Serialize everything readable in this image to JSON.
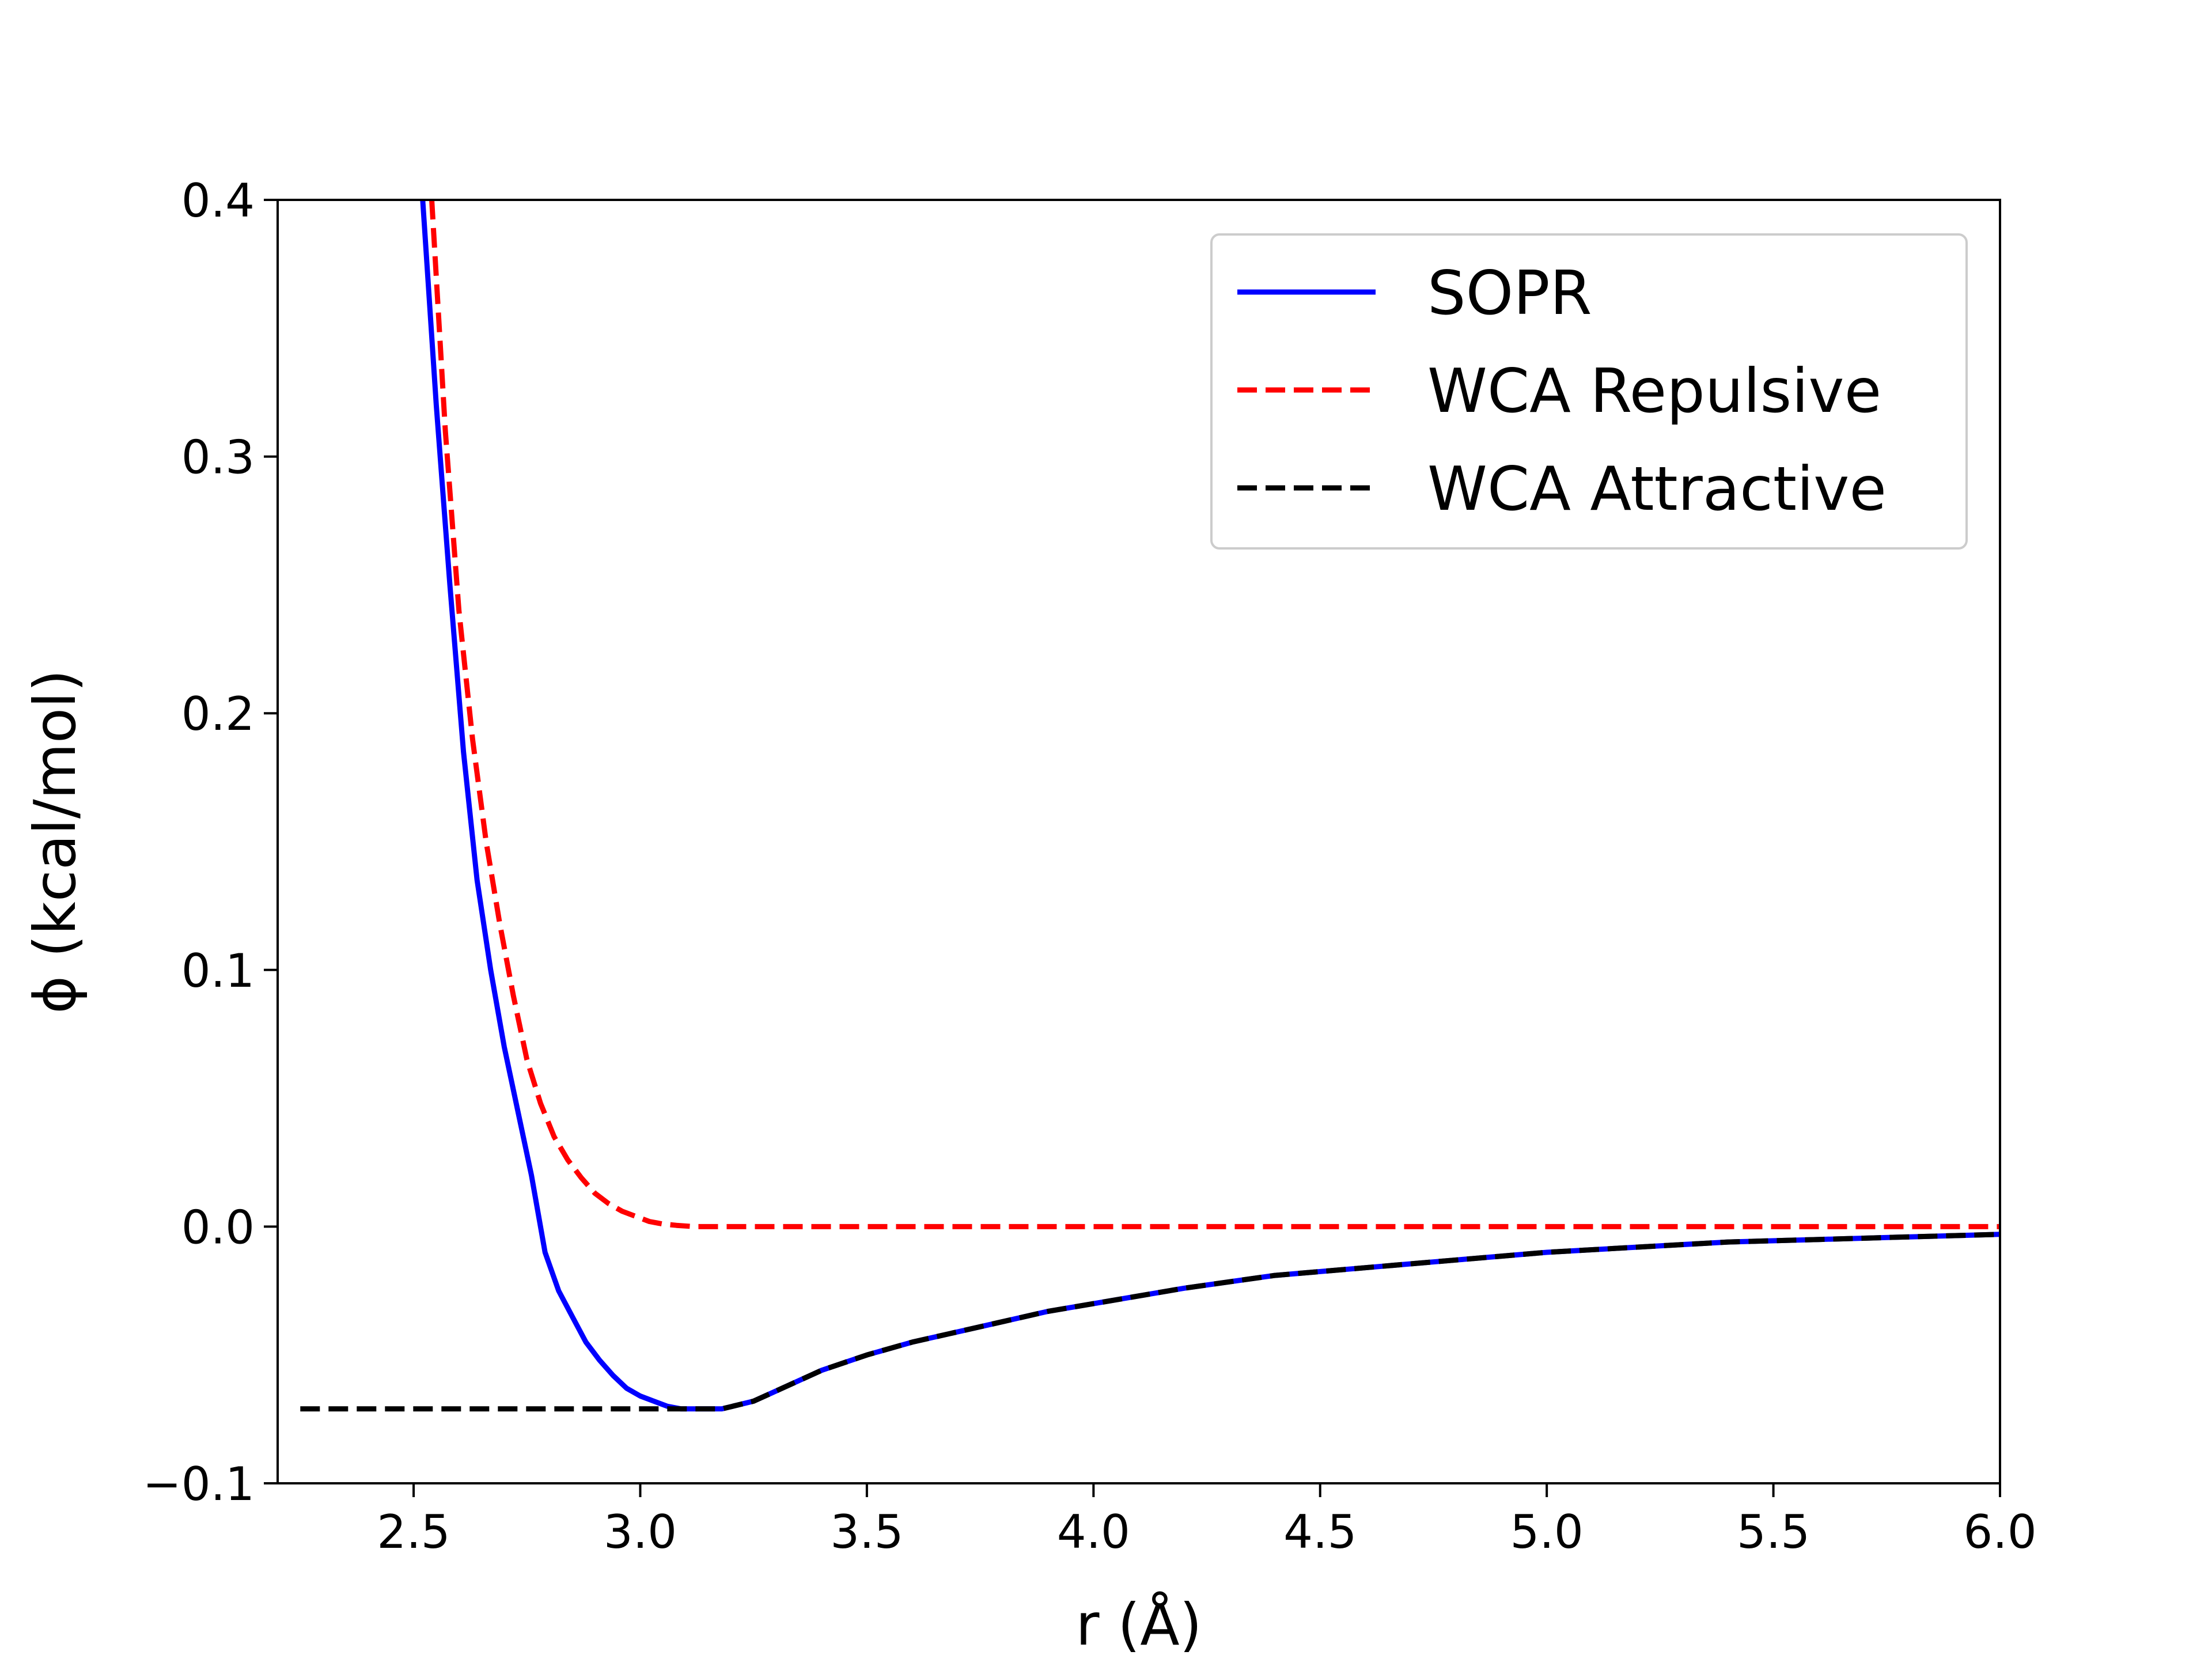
{
  "chart_data": {
    "type": "line",
    "title": "",
    "xlabel": "r (Å)",
    "ylabel": "ϕ (kcal/mol)",
    "xlim": [
      2.2,
      6.0
    ],
    "ylim": [
      -0.1,
      0.4
    ],
    "xticks": [
      2.5,
      3.0,
      3.5,
      4.0,
      4.5,
      5.0,
      5.5,
      6.0
    ],
    "xtick_labels": [
      "2.5",
      "3.0",
      "3.5",
      "4.0",
      "4.5",
      "5.0",
      "5.5",
      "6.0"
    ],
    "yticks": [
      -0.1,
      0.0,
      0.1,
      0.2,
      0.3,
      0.4
    ],
    "ytick_labels": [
      "−0.1",
      "0.0",
      "0.1",
      "0.2",
      "0.3",
      "0.4"
    ],
    "grid": false,
    "legend_position": "top-right",
    "series": [
      {
        "name": "SOPR",
        "color": "#0000ff",
        "style": "solid",
        "x": [
          2.52,
          2.55,
          2.58,
          2.61,
          2.64,
          2.67,
          2.7,
          2.73,
          2.76,
          2.79,
          2.82,
          2.85,
          2.88,
          2.91,
          2.94,
          2.97,
          3.0,
          3.03,
          3.06,
          3.09,
          3.12,
          3.15,
          3.18,
          3.25,
          3.3,
          3.4,
          3.5,
          3.6,
          3.7,
          3.8,
          3.9,
          4.0,
          4.2,
          4.4,
          4.6,
          4.8,
          5.0,
          5.2,
          5.4,
          5.6,
          5.8,
          6.0
        ],
        "y": [
          0.4,
          0.32,
          0.25,
          0.185,
          0.135,
          0.1,
          0.07,
          0.045,
          0.02,
          -0.01,
          -0.025,
          -0.035,
          -0.045,
          -0.052,
          -0.058,
          -0.063,
          -0.066,
          -0.068,
          -0.07,
          -0.071,
          -0.071,
          -0.071,
          -0.071,
          -0.068,
          -0.064,
          -0.056,
          -0.05,
          -0.045,
          -0.041,
          -0.037,
          -0.033,
          -0.03,
          -0.024,
          -0.019,
          -0.016,
          -0.013,
          -0.01,
          -0.008,
          -0.006,
          -0.005,
          -0.004,
          -0.003
        ]
      },
      {
        "name": "WCA Repulsive",
        "color": "#ff0000",
        "style": "dashed",
        "x": [
          2.54,
          2.57,
          2.6,
          2.63,
          2.66,
          2.69,
          2.72,
          2.75,
          2.78,
          2.81,
          2.84,
          2.87,
          2.9,
          2.93,
          2.96,
          2.99,
          3.02,
          3.05,
          3.08,
          3.12,
          3.15,
          3.18,
          3.25,
          3.5,
          4.0,
          4.5,
          5.0,
          5.5,
          6.0
        ],
        "y": [
          0.4,
          0.31,
          0.24,
          0.19,
          0.15,
          0.118,
          0.09,
          0.065,
          0.048,
          0.035,
          0.026,
          0.019,
          0.013,
          0.009,
          0.006,
          0.004,
          0.002,
          0.001,
          0.0005,
          0.0,
          0.0,
          0.0,
          0.0,
          0.0,
          0.0,
          0.0,
          0.0,
          0.0,
          0.0
        ]
      },
      {
        "name": "WCA Attractive",
        "color": "#000000",
        "style": "dashed",
        "x": [
          2.25,
          2.5,
          2.75,
          3.0,
          3.18,
          3.25,
          3.3,
          3.4,
          3.5,
          3.6,
          3.7,
          3.8,
          3.9,
          4.0,
          4.2,
          4.4,
          4.6,
          4.8,
          5.0,
          5.2,
          5.4,
          5.6,
          5.8,
          6.0
        ],
        "y": [
          -0.071,
          -0.071,
          -0.071,
          -0.071,
          -0.071,
          -0.068,
          -0.064,
          -0.056,
          -0.05,
          -0.045,
          -0.041,
          -0.037,
          -0.033,
          -0.03,
          -0.024,
          -0.019,
          -0.016,
          -0.013,
          -0.01,
          -0.008,
          -0.006,
          -0.005,
          -0.004,
          -0.003
        ]
      }
    ]
  }
}
